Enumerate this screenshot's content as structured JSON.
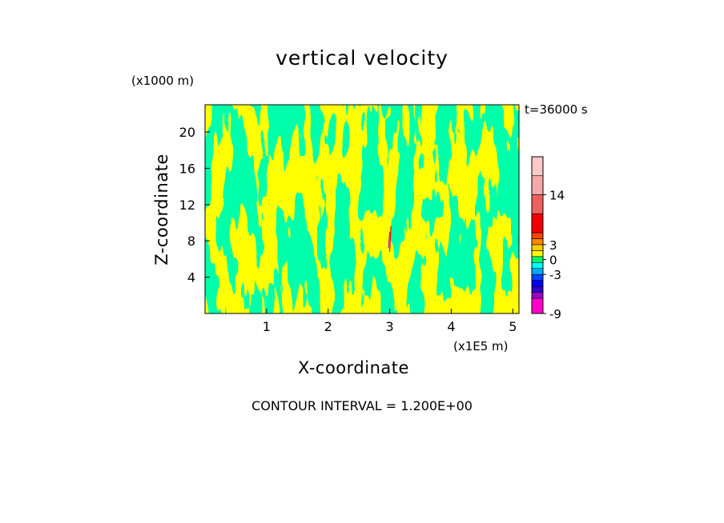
{
  "chart_data": {
    "type": "heatmap",
    "title": "vertical velocity",
    "xlabel": "X-coordinate",
    "ylabel": "Z-coordinate",
    "x_unit_label": "(x1E5 m)",
    "z_unit_label": "(x1000 m)",
    "time_label": "t=36000 s",
    "footer": "CONTOUR INTERVAL = 1.200E+00",
    "xlim": [
      0,
      5.1
    ],
    "ylim": [
      0,
      23
    ],
    "xticks": [
      1,
      2,
      3,
      4,
      5
    ],
    "yticks": [
      4,
      8,
      12,
      16,
      20
    ],
    "dominant_colors": {
      "positive": "#ffff00",
      "negative": "#00ff66"
    },
    "colorbar": {
      "tick_labels": [
        "-9",
        "-3",
        "0",
        "3",
        "14"
      ],
      "tick_values": [
        -9,
        -3,
        0,
        3,
        14
      ],
      "levels": [
        {
          "min": -9.0,
          "max": -7.8,
          "color": "#ff00cc"
        },
        {
          "min": -7.8,
          "max": -6.6,
          "color": "#9900cc"
        },
        {
          "min": -6.6,
          "max": -5.4,
          "color": "#3300cc"
        },
        {
          "min": -5.4,
          "max": -4.2,
          "color": "#0000ff"
        },
        {
          "min": -4.2,
          "max": -3.0,
          "color": "#0044ff"
        },
        {
          "min": -3.0,
          "max": -1.8,
          "color": "#00aaff"
        },
        {
          "min": -1.8,
          "max": -0.6,
          "color": "#00ffff"
        },
        {
          "min": -0.6,
          "max": 0.6,
          "color": "#00ff66"
        },
        {
          "min": 0.6,
          "max": 1.8,
          "color": "#ffff00"
        },
        {
          "min": 1.8,
          "max": 3.0,
          "color": "#ffcc00"
        },
        {
          "min": 3.0,
          "max": 4.2,
          "color": "#ff8800"
        },
        {
          "min": 4.2,
          "max": 5.4,
          "color": "#ff4400"
        },
        {
          "min": 5.4,
          "max": 9.0,
          "color": "#ee0000"
        },
        {
          "min": 9.0,
          "max": 14.0,
          "color": "#ee6060"
        },
        {
          "min": 14.0,
          "max": 17.0,
          "color": "#f5a8a8"
        },
        {
          "min": 17.0,
          "max": 20.0,
          "color": "#fcc8c8"
        }
      ]
    }
  }
}
